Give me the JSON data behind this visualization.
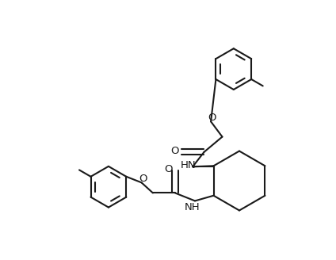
{
  "bg_color": "#ffffff",
  "line_color": "#1a1a1a",
  "line_width": 1.5,
  "font_size": 9.5,
  "figsize": [
    4.24,
    3.28
  ],
  "dpi": 100,
  "xlim": [
    -0.5,
    9.5
  ],
  "ylim": [
    -0.5,
    7.8
  ]
}
